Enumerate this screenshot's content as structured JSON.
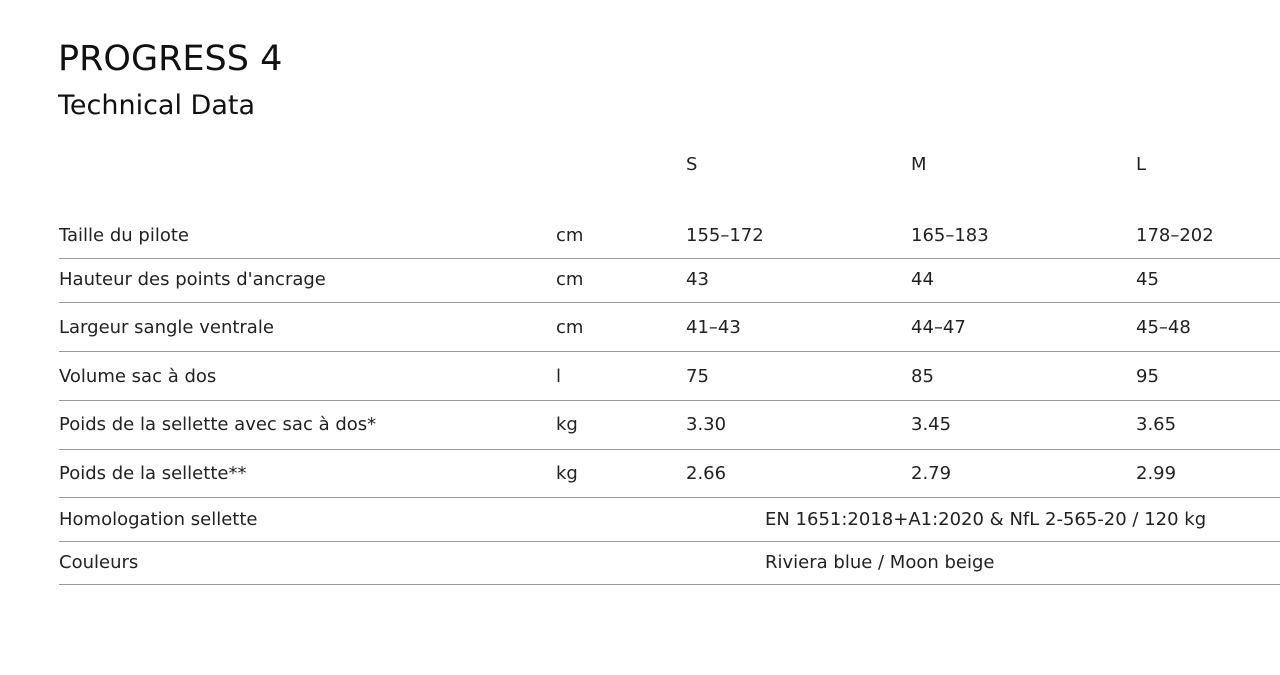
{
  "header": {
    "title": "PROGRESS 4",
    "subtitle": "Technical Data"
  },
  "table": {
    "columns": [
      "S",
      "M",
      "L"
    ],
    "rows": [
      [
        "Taille du pilote",
        "cm",
        "155–172",
        "165–183",
        "178–202"
      ],
      [
        "Hauteur des points d'ancrage",
        "cm",
        "43",
        "44",
        "45"
      ],
      [
        "Largeur sangle ventrale",
        "cm",
        "41–43",
        "44–47",
        "45–48"
      ],
      [
        "Volume sac à dos",
        "l",
        "75",
        "85",
        "95"
      ],
      [
        "Poids de la sellette avec sac à dos*",
        "kg",
        "3.30",
        "3.45",
        "3.65"
      ],
      [
        "Poids de la sellette**",
        "kg",
        "2.66",
        "2.79",
        "2.99"
      ]
    ],
    "span_rows": [
      [
        "Homologation sellette",
        "EN 1651:2018+A1:2020 & NfL 2-565-20 / 120 kg"
      ],
      [
        "Couleurs",
        "Riviera blue / Moon beige"
      ]
    ]
  }
}
